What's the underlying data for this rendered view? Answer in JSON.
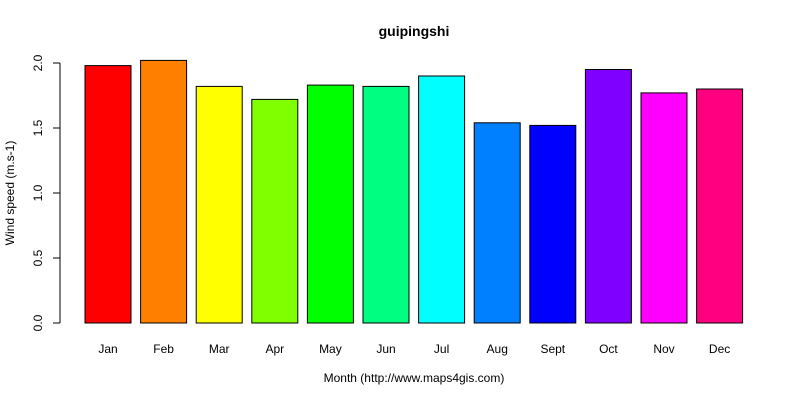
{
  "chart_data": {
    "type": "bar",
    "title": "guipingshi",
    "xlabel": "Month (http://www.maps4gis.com)",
    "ylabel": "Wind speed (m.s-1)",
    "categories": [
      "Jan",
      "Feb",
      "Mar",
      "Apr",
      "May",
      "Jun",
      "Jul",
      "Aug",
      "Sept",
      "Oct",
      "Nov",
      "Dec"
    ],
    "values": [
      1.98,
      2.02,
      1.82,
      1.72,
      1.83,
      1.82,
      1.9,
      1.54,
      1.52,
      1.95,
      1.77,
      1.8
    ],
    "colors": [
      "#FF0000",
      "#FF8000",
      "#FFFF00",
      "#80FF00",
      "#00FF00",
      "#00FF80",
      "#00FFFF",
      "#0080FF",
      "#0000FF",
      "#8000FF",
      "#FF00FF",
      "#FF0080"
    ],
    "yticks": [
      "0.0",
      "0.5",
      "1.0",
      "1.5",
      "2.0"
    ],
    "ylim": [
      0,
      2.02
    ],
    "grid": false,
    "legend": "none"
  }
}
